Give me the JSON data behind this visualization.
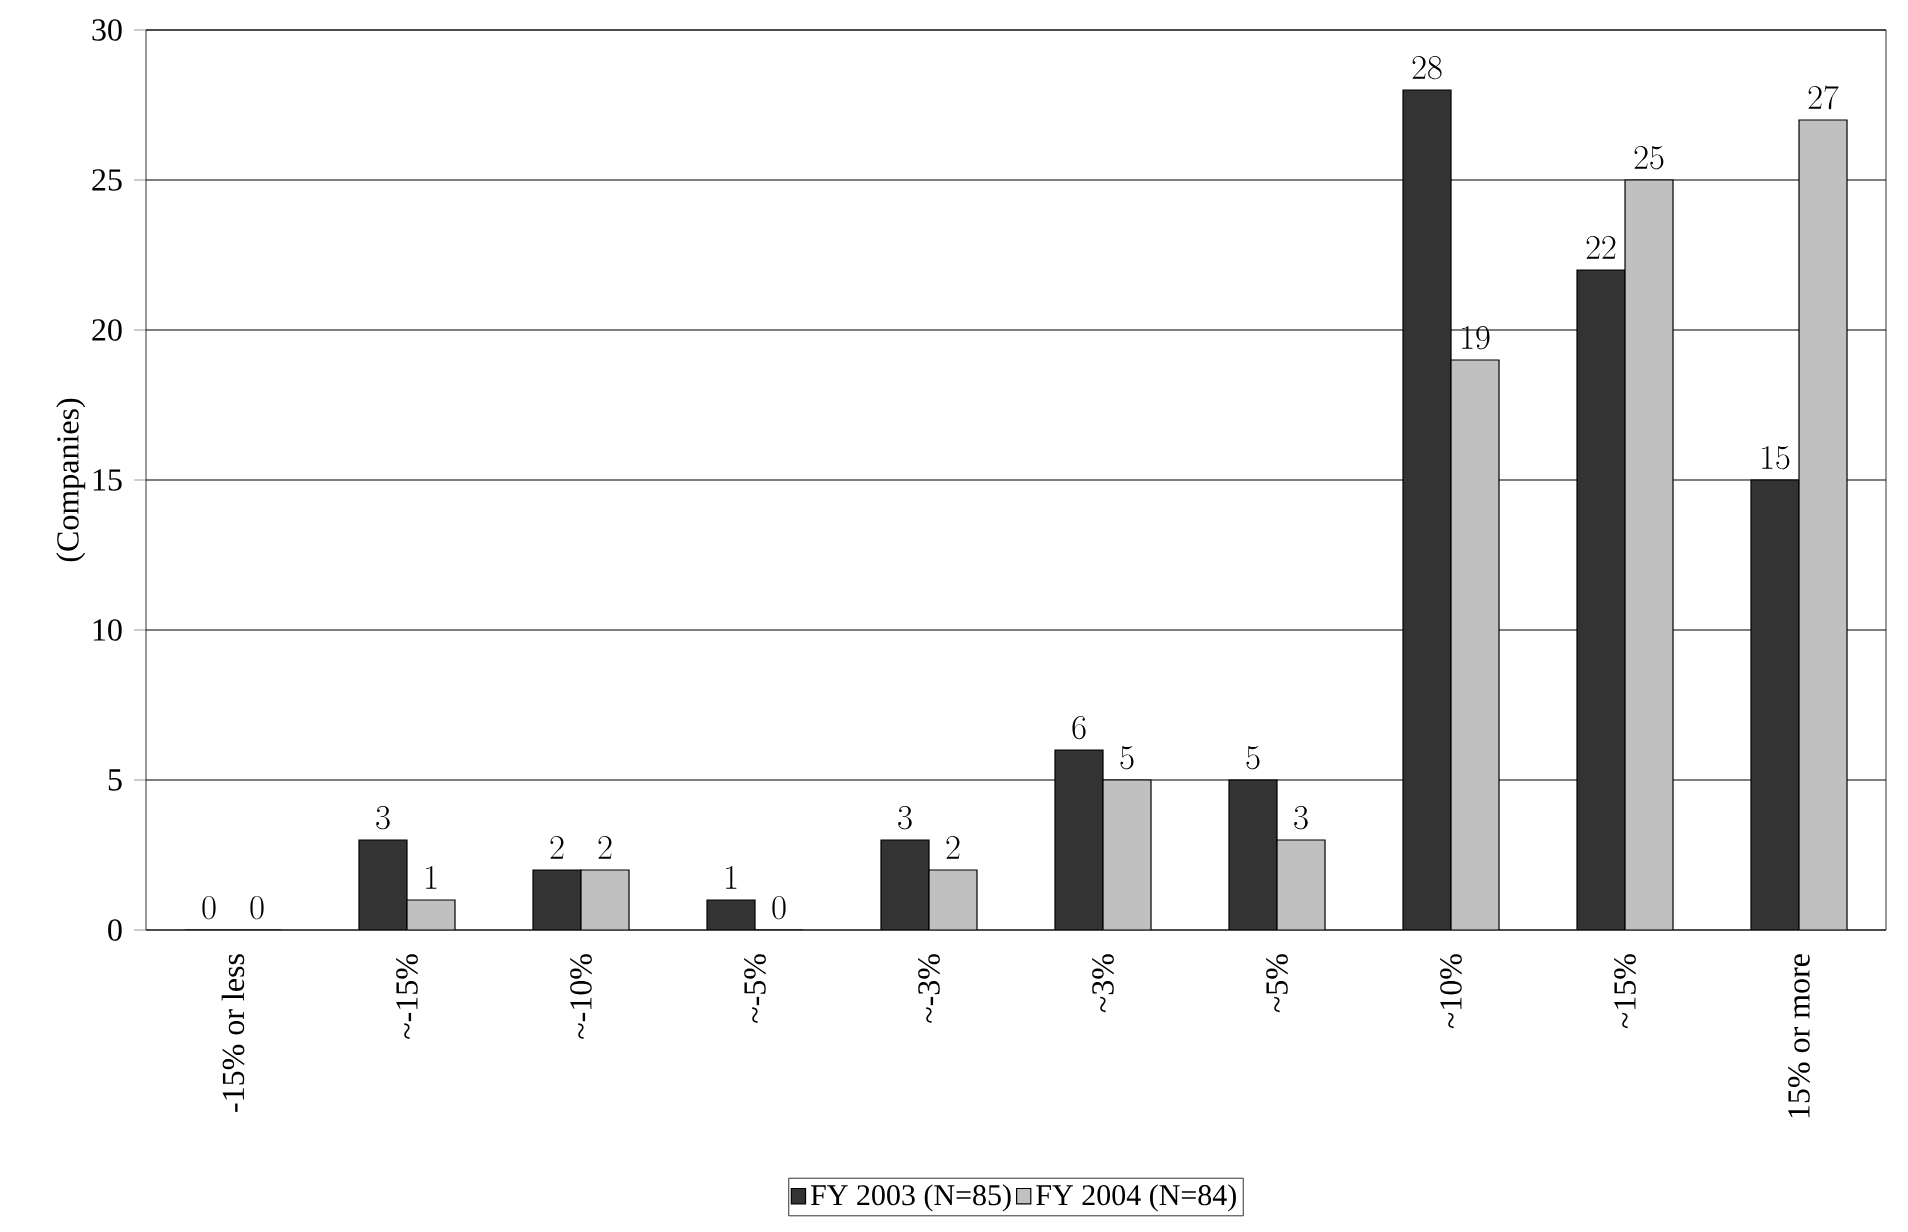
{
  "chart_data": {
    "type": "bar",
    "ylabel": "(Companies)",
    "categories": [
      "-15% or less",
      "~-15%",
      "~-10%",
      "~-5%",
      "~-3%",
      "~3%",
      "~5%",
      "~10%",
      "~15%",
      "15% or more"
    ],
    "series": [
      {
        "name": "FY 2003 (N=85)",
        "color": "#333333",
        "values": [
          0,
          3,
          2,
          1,
          3,
          6,
          5,
          28,
          22,
          15
        ]
      },
      {
        "name": "FY 2004 (N=84)",
        "color": "#c0c0c0",
        "values": [
          0,
          1,
          2,
          0,
          2,
          5,
          3,
          19,
          25,
          27
        ]
      }
    ],
    "ylim": [
      0,
      30
    ],
    "yticks": [
      0,
      5,
      10,
      15,
      20,
      25,
      30
    ],
    "grid": "y",
    "legend": "bottom",
    "data_labels": true
  }
}
